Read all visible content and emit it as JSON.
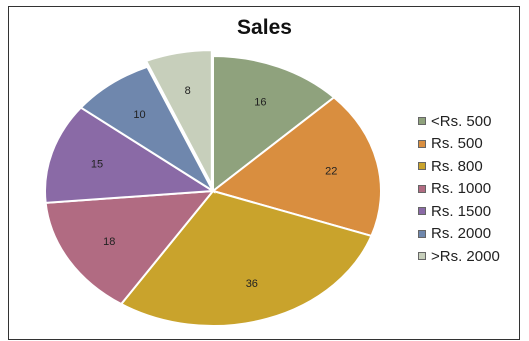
{
  "chart_data": {
    "type": "pie",
    "title": "Sales",
    "categories": [
      "<Rs. 500",
      "Rs. 500",
      "Rs. 800",
      "Rs. 1000",
      "Rs. 1500",
      "Rs. 2000",
      ">Rs. 2000"
    ],
    "values": [
      16,
      22,
      36,
      18,
      15,
      10,
      8
    ],
    "colors": [
      "#8fa27d",
      "#d98e3f",
      "#c9a32c",
      "#b16b82",
      "#8a6aa6",
      "#6f87ad",
      "#c7cfbb"
    ],
    "exploded_slice": ">Rs. 2000",
    "legend_position": "right",
    "data_labels": true
  }
}
